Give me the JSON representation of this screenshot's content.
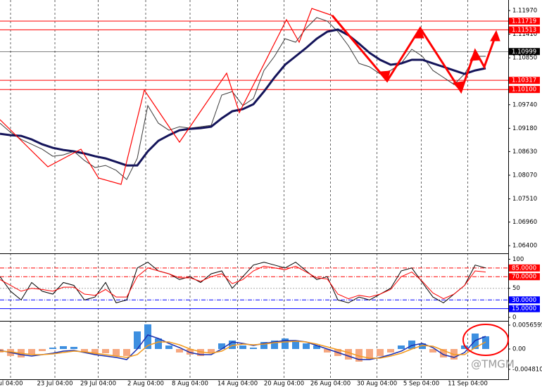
{
  "chart_data": [
    {
      "type": "line",
      "x": [
        0,
        1,
        2,
        3,
        4,
        5,
        6,
        7,
        8,
        9,
        10,
        11,
        12,
        13,
        14,
        15,
        16,
        17,
        18,
        19,
        20,
        21,
        22,
        23,
        24,
        25,
        26,
        27,
        28,
        29,
        30,
        31,
        32,
        33,
        34,
        35,
        36,
        37,
        38,
        39,
        40,
        41,
        42,
        43,
        44,
        45,
        46
      ],
      "xlim": [
        0,
        46
      ],
      "xticks": [
        {
          "value": 1,
          "label": "ul 04:00"
        },
        {
          "value": 5.2,
          "label": "23 Jul 04:00"
        },
        {
          "value": 9.3,
          "label": "29 Jul 04:00"
        },
        {
          "value": 13.8,
          "label": "2 Aug 04:00"
        },
        {
          "value": 18,
          "label": "8 Aug 04:00"
        },
        {
          "value": 22.5,
          "label": "14 Aug 04:00"
        },
        {
          "value": 26.9,
          "label": "20 Aug 04:00"
        },
        {
          "value": 31.3,
          "label": "26 Aug 04:00"
        },
        {
          "value": 35.7,
          "label": "30 Aug 04:00"
        },
        {
          "value": 39.9,
          "label": "5 Sep 04:00"
        },
        {
          "value": 44.3,
          "label": "11 Sep 04:00"
        }
      ],
      "ylim": [
        1.0622,
        1.1222
      ],
      "yticks": [
        {
          "value": 1.1197,
          "label": "1.11970"
        },
        {
          "value": 1.1141,
          "label": "1.11410"
        },
        {
          "value": 1.1085,
          "label": "1.10850"
        },
        {
          "value": 1.1029,
          "label": "1.10290"
        },
        {
          "value": 1.0974,
          "label": "1.09740"
        },
        {
          "value": 1.0918,
          "label": "1.09180"
        },
        {
          "value": 1.0863,
          "label": "1.08630"
        },
        {
          "value": 1.0807,
          "label": "1.08070"
        },
        {
          "value": 1.0751,
          "label": "1.07510"
        },
        {
          "value": 1.0696,
          "label": "1.06960"
        },
        {
          "value": 1.064,
          "label": "1.06400"
        }
      ],
      "hlines": [
        {
          "value": 1.11719,
          "label": "1.11719",
          "color": "#ff0000"
        },
        {
          "value": 1.11513,
          "label": "1.11513",
          "color": "#ff0000"
        },
        {
          "value": 1.10999,
          "label": "1.10999",
          "color": "#000000"
        },
        {
          "value": 1.10317,
          "label": "1.10317",
          "color": "#ff0000"
        },
        {
          "value": 1.101,
          "label": "1.10100",
          "color": "#ff0000"
        }
      ],
      "grid": true,
      "series": [
        {
          "color": "#3a3a3a",
          "width": 1,
          "values": [
            1.09302,
            1.09085,
            1.08918,
            1.08802,
            1.08685,
            1.08518,
            1.08552,
            1.08635,
            1.08418,
            1.08251,
            1.08301,
            1.08185,
            1.07968,
            1.08468,
            1.09719,
            1.09302,
            1.09135,
            1.09219,
            1.09185,
            1.09219,
            1.09252,
            1.09969,
            1.10052,
            1.09719,
            1.09886,
            1.10552,
            1.10886,
            1.11303,
            1.1122,
            1.11553,
            1.11803,
            1.1172,
            1.1147,
            1.11136,
            1.10719,
            1.10636,
            1.10469,
            1.10552,
            1.10719,
            1.11053,
            1.10886,
            1.10552,
            1.10386,
            1.10219,
            1.10469,
            1.10886,
            1.10886
          ]
        },
        {
          "color": "#14145a",
          "width": 3,
          "values": [
            1.09052,
            1.09018,
            1.09002,
            1.08918,
            1.08802,
            1.08718,
            1.08668,
            1.08635,
            1.08585,
            1.08518,
            1.08468,
            1.08385,
            1.08301,
            1.08301,
            1.08635,
            1.08885,
            1.09018,
            1.09135,
            1.09168,
            1.09185,
            1.09219,
            1.09419,
            1.09585,
            1.09635,
            1.09752,
            1.10052,
            1.10386,
            1.10686,
            1.10886,
            1.11086,
            1.11303,
            1.1147,
            1.1152,
            1.11386,
            1.11186,
            1.10969,
            1.10803,
            1.10686,
            1.10719,
            1.10803,
            1.10803,
            1.10719,
            1.10636,
            1.10552,
            1.10469,
            1.10552,
            1.10603
          ]
        }
      ]
    },
    {
      "type": "line",
      "x": [
        0,
        1,
        2,
        3,
        4,
        5,
        6,
        7,
        8,
        9,
        10,
        11,
        12,
        13,
        14,
        15,
        16,
        17,
        18,
        19,
        20,
        21,
        22,
        23,
        24,
        25,
        26,
        27,
        28,
        29,
        30,
        31,
        32,
        33,
        34,
        35,
        36,
        37,
        38,
        39,
        40,
        41,
        42,
        43,
        44,
        45,
        46
      ],
      "xlim": [
        0,
        46
      ],
      "ylim": [
        -6,
        109
      ],
      "yticks": [
        100,
        50,
        0
      ],
      "hlines": [
        {
          "value": 85,
          "label": "85.0000",
          "color": "#ff0000"
        },
        {
          "value": 70,
          "label": "70.0000",
          "color": "#ff0000"
        },
        {
          "value": 30,
          "label": "30.0000",
          "color": "#0000ff"
        },
        {
          "value": 15,
          "label": "15.0000",
          "color": "#0000ff"
        }
      ],
      "series": [
        {
          "color": "#000000",
          "width": 1,
          "values": [
            70,
            45,
            30,
            60,
            45,
            40,
            60,
            55,
            30,
            35,
            60,
            25,
            30,
            85,
            95,
            80,
            75,
            65,
            70,
            60,
            75,
            80,
            50,
            70,
            90,
            95,
            90,
            85,
            95,
            80,
            65,
            70,
            30,
            25,
            35,
            30,
            40,
            50,
            80,
            85,
            60,
            35,
            25,
            40,
            55,
            90,
            85
          ]
        },
        {
          "color": "#ff0000",
          "width": 1,
          "values": [
            65,
            55,
            45,
            50,
            48,
            45,
            52,
            52,
            40,
            38,
            48,
            35,
            35,
            70,
            85,
            80,
            75,
            68,
            68,
            62,
            70,
            75,
            58,
            65,
            80,
            88,
            85,
            82,
            88,
            78,
            68,
            66,
            40,
            32,
            38,
            35,
            40,
            48,
            70,
            78,
            62,
            42,
            32,
            40,
            55,
            80,
            78
          ]
        }
      ]
    },
    {
      "type": "combo",
      "x": [
        0,
        1,
        2,
        3,
        4,
        5,
        6,
        7,
        8,
        9,
        10,
        11,
        12,
        13,
        14,
        15,
        16,
        17,
        18,
        19,
        20,
        21,
        22,
        23,
        24,
        25,
        26,
        27,
        28,
        29,
        30,
        31,
        32,
        33,
        34,
        35,
        36,
        37,
        38,
        39,
        40,
        41,
        42,
        43,
        44,
        45,
        46
      ],
      "xlim": [
        0,
        46
      ],
      "ylim": [
        -0.00716,
        0.00649
      ],
      "yticks": [
        0.0056595,
        {
          "value": 0,
          "label": "0.00"
        },
        {
          "value": -0.00481,
          "label": "-0.004810"
        }
      ],
      "watermark": "@TMGM",
      "series": [
        {
          "kind": "bar",
          "color": "#3d8fe0",
          "negative_color": "#f6a77f",
          "values": [
            -0.00083,
            -0.00166,
            -0.002,
            -0.00133,
            -0.0005,
            0.00033,
            0.00067,
            0.0005,
            -0.00083,
            -0.00133,
            -0.001,
            -0.00166,
            -0.00166,
            0.00416,
            0.00583,
            0.0025,
            0.00083,
            -0.00083,
            -0.00133,
            -0.00166,
            -0.00083,
            0.00133,
            0.002,
            0.00083,
            0.00033,
            0.00166,
            0.002,
            0.0025,
            0.002,
            0.00133,
            0.00083,
            -0.00083,
            -0.00166,
            -0.0025,
            -0.003,
            -0.0025,
            -0.00166,
            -0.00083,
            0.00083,
            0.002,
            0.00133,
            -0.00083,
            -0.002,
            -0.0025,
            0.00083,
            0.00366,
            0.003
          ]
        },
        {
          "kind": "line",
          "color": "#1a2fb0",
          "width": 1.5,
          "values": [
            -0.00033,
            -0.00083,
            -0.00133,
            -0.00166,
            -0.00133,
            -0.001,
            -0.0005,
            -0.00033,
            -0.00083,
            -0.00133,
            -0.00166,
            -0.002,
            -0.0025,
            0,
            0.00333,
            0.0025,
            0.00133,
            0.00033,
            -0.00083,
            -0.00133,
            -0.00133,
            0,
            0.00166,
            0.00133,
            0.00083,
            0.00133,
            0.00166,
            0.002,
            0.002,
            0.00166,
            0.00083,
            0,
            -0.00083,
            -0.00166,
            -0.0025,
            -0.0025,
            -0.002,
            -0.00133,
            -0.0005,
            0.00083,
            0.00133,
            0.00033,
            -0.00133,
            -0.002,
            -0.00083,
            0.002,
            0.003
          ]
        },
        {
          "kind": "line",
          "color": "#f39a1e",
          "width": 1.5,
          "values": [
            -0.0005,
            -0.00067,
            -0.001,
            -0.00133,
            -0.00133,
            -0.00117,
            -0.00083,
            -0.0005,
            -0.00067,
            -0.001,
            -0.00133,
            -0.00166,
            -0.002,
            -0.00133,
            0.00083,
            0.00166,
            0.00166,
            0.001,
            0,
            -0.00067,
            -0.001,
            -0.0005,
            0.00083,
            0.00117,
            0.001,
            0.00117,
            0.0015,
            0.00166,
            0.00183,
            0.00166,
            0.00117,
            0.0005,
            -0.00017,
            -0.00083,
            -0.00166,
            -0.00216,
            -0.00216,
            -0.00166,
            -0.001,
            0,
            0.00083,
            0.00067,
            -0.00033,
            -0.00133,
            -0.00133,
            0.00033,
            0.00166
          ]
        }
      ]
    }
  ]
}
